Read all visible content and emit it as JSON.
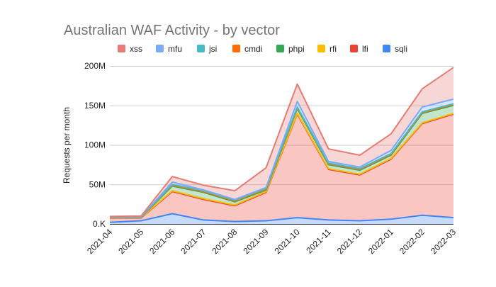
{
  "chart_data": {
    "type": "area",
    "stacked": true,
    "title": "Australian WAF Activity - by vector",
    "xlabel": "",
    "ylabel": "Requests per month",
    "ylim": [
      0,
      200
    ],
    "y_unit": "M",
    "yticks": [
      0,
      50,
      100,
      150,
      200
    ],
    "ytick_labels": [
      "0.K",
      "50M",
      "100M",
      "150M",
      "200M"
    ],
    "grid": true,
    "legend_position": "top",
    "categories": [
      "2021-04",
      "2021-05",
      "2021-06",
      "2021-07",
      "2021-08",
      "2021-09",
      "2021-10",
      "2021-11",
      "2021-12",
      "2022-01",
      "2022-02",
      "2022-03"
    ],
    "legend_order": [
      "xss",
      "mfu",
      "jsi",
      "cmdi",
      "phpi",
      "rfi",
      "lfi",
      "sqli"
    ],
    "series": [
      {
        "name": "sqli",
        "color": "#4285f4",
        "values": [
          2,
          4,
          13,
          5,
          3,
          4,
          8,
          5,
          4,
          6,
          11,
          8
        ]
      },
      {
        "name": "lfi",
        "color": "#ea4335",
        "values": [
          5.5,
          3.5,
          28,
          26,
          20,
          36,
          131,
          64,
          58,
          76,
          116,
          131
        ]
      },
      {
        "name": "rfi",
        "color": "#fbbc04",
        "values": [
          0.5,
          0.5,
          1,
          1,
          1,
          1,
          1,
          1,
          1,
          1,
          1,
          1
        ]
      },
      {
        "name": "phpi",
        "color": "#34a853",
        "values": [
          0.3,
          0.3,
          6,
          8,
          4,
          2,
          6,
          5,
          5,
          4,
          12,
          10
        ]
      },
      {
        "name": "cmdi",
        "color": "#ff6d01",
        "values": [
          0.3,
          0.3,
          1,
          1,
          1,
          1,
          1,
          1,
          1,
          1,
          1,
          1
        ]
      },
      {
        "name": "jsi",
        "color": "#46bdc6",
        "values": [
          0.2,
          0.2,
          1,
          1,
          1,
          1,
          1,
          1,
          1,
          1,
          1,
          1
        ]
      },
      {
        "name": "mfu",
        "color": "#7baaf7",
        "values": [
          0.2,
          0.2,
          3,
          1,
          1,
          1,
          7,
          2,
          2,
          4,
          6,
          6
        ]
      },
      {
        "name": "xss",
        "color": "#e67c73",
        "values": [
          0.5,
          1,
          7,
          6,
          11,
          25,
          22,
          16,
          15,
          21,
          23,
          40
        ]
      }
    ]
  }
}
